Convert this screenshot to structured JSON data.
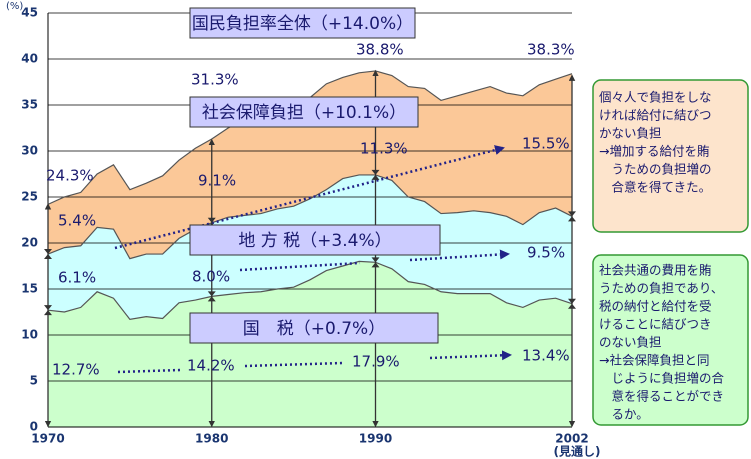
{
  "chart_data": {
    "type": "stacked_area",
    "ylabel": "(%)",
    "ylim": [
      0,
      45
    ],
    "yticks": [
      0,
      5,
      10,
      15,
      20,
      25,
      30,
      35,
      40,
      45
    ],
    "xlim": [
      1970,
      2002
    ],
    "xticks": [
      1970,
      1980,
      1990,
      2002
    ],
    "x_note": "(見通し)",
    "grid": true,
    "x": [
      1970,
      1971,
      1972,
      1973,
      1974,
      1975,
      1976,
      1977,
      1978,
      1979,
      1980,
      1981,
      1982,
      1983,
      1984,
      1985,
      1986,
      1987,
      1988,
      1989,
      1990,
      1991,
      1992,
      1993,
      1994,
      1995,
      1996,
      1997,
      1998,
      1999,
      2000,
      2001,
      2002
    ],
    "series": [
      {
        "name": "国　税（+0.7%）",
        "color": "#ccffcc",
        "values": [
          12.7,
          12.5,
          13.0,
          14.7,
          14.0,
          11.7,
          12.0,
          11.8,
          13.5,
          13.8,
          14.2,
          14.4,
          14.6,
          14.7,
          15.0,
          15.2,
          16.0,
          17.0,
          17.5,
          18.0,
          17.9,
          17.2,
          15.8,
          15.5,
          14.7,
          14.5,
          14.5,
          14.5,
          13.5,
          13.0,
          13.8,
          14.0,
          13.4
        ],
        "value_labels": [
          "12.7%",
          null,
          null,
          null,
          null,
          null,
          null,
          null,
          null,
          null,
          "14.2%",
          null,
          null,
          null,
          null,
          null,
          null,
          null,
          null,
          null,
          "17.9%",
          null,
          null,
          null,
          null,
          null,
          null,
          null,
          null,
          null,
          null,
          null,
          "13.4%"
        ]
      },
      {
        "name": "地 方 税（+3.4%）",
        "color": "#ccffff",
        "values": [
          6.1,
          7.0,
          6.7,
          7.0,
          7.5,
          6.6,
          6.8,
          7.0,
          7.0,
          7.7,
          8.0,
          8.4,
          8.4,
          8.5,
          8.7,
          8.8,
          8.8,
          8.8,
          9.5,
          9.4,
          9.5,
          9.6,
          9.2,
          9.0,
          8.5,
          8.8,
          9.0,
          8.8,
          9.4,
          9.0,
          9.5,
          9.8,
          9.5
        ],
        "value_labels": [
          "6.1%",
          null,
          null,
          null,
          null,
          null,
          null,
          null,
          null,
          null,
          "8.0%",
          null,
          null,
          null,
          null,
          null,
          null,
          null,
          null,
          null,
          "9.5%",
          null,
          null,
          null,
          null,
          null,
          null,
          null,
          null,
          null,
          null,
          null,
          "9.5%"
        ]
      },
      {
        "name": "社会保障負担（+10.1%）",
        "color": "#fbc898",
        "values": [
          5.4,
          5.5,
          5.8,
          5.8,
          7.0,
          7.5,
          7.7,
          8.5,
          8.5,
          8.8,
          9.1,
          9.7,
          10.5,
          11.1,
          10.8,
          11.0,
          11.0,
          11.5,
          11.0,
          11.1,
          11.3,
          11.4,
          12.0,
          12.3,
          12.3,
          12.7,
          13.0,
          13.7,
          13.4,
          14.0,
          13.9,
          14.0,
          15.5
        ],
        "value_labels": [
          "5.4%",
          null,
          null,
          null,
          null,
          null,
          null,
          null,
          null,
          null,
          "9.1%",
          null,
          null,
          null,
          null,
          null,
          null,
          null,
          null,
          null,
          "11.3%",
          null,
          null,
          null,
          null,
          null,
          null,
          null,
          null,
          null,
          null,
          null,
          "15.5%"
        ]
      }
    ],
    "total_name": "国民負担率全体（+14.0%）",
    "totals": {
      "x": [
        1970,
        1980,
        1990,
        2002
      ],
      "values": [
        24.3,
        31.3,
        38.8,
        38.3
      ],
      "value_labels": [
        "24.3%",
        "31.3%",
        "38.8%",
        "38.3%"
      ]
    },
    "notes": [
      {
        "lines": [
          "個々人で負担をしな",
          "ければ給付に結びつ",
          "かない負担",
          "→増加する給付を賄",
          "　うための負担増の",
          "　合意を得てきた。"
        ]
      },
      {
        "lines": [
          "社会共通の費用を賄",
          "うための負担であり、",
          "税の納付と給付を受",
          "けることに結びつき",
          "のない負担",
          "→社会保障負担と同",
          "　じように負担増の合",
          "　意を得ることができ",
          "　るか。"
        ]
      }
    ]
  }
}
